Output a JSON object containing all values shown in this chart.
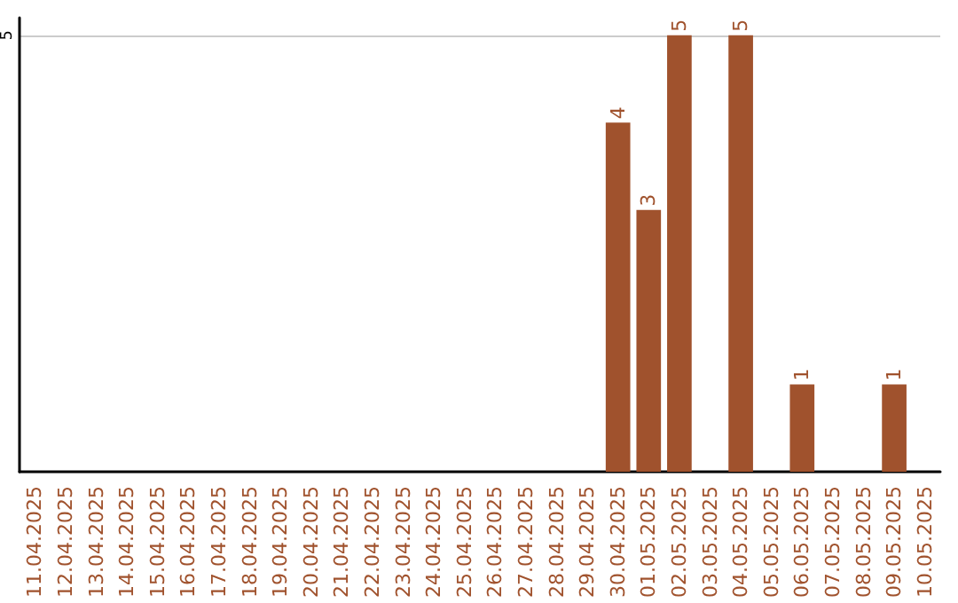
{
  "chart_data": {
    "type": "bar",
    "categories": [
      "11.04.2025",
      "12.04.2025",
      "13.04.2025",
      "14.04.2025",
      "15.04.2025",
      "16.04.2025",
      "17.04.2025",
      "18.04.2025",
      "19.04.2025",
      "20.04.2025",
      "21.04.2025",
      "22.04.2025",
      "23.04.2025",
      "24.04.2025",
      "25.04.2025",
      "26.04.2025",
      "27.04.2025",
      "28.04.2025",
      "29.04.2025",
      "30.04.2025",
      "01.05.2025",
      "02.05.2025",
      "03.05.2025",
      "04.05.2025",
      "05.05.2025",
      "06.05.2025",
      "07.05.2025",
      "08.05.2025",
      "09.05.2025",
      "10.05.2025"
    ],
    "values": [
      null,
      null,
      null,
      null,
      null,
      null,
      null,
      null,
      null,
      null,
      null,
      null,
      null,
      null,
      null,
      null,
      null,
      null,
      null,
      4,
      3,
      5,
      null,
      5,
      null,
      1,
      null,
      null,
      1,
      null
    ],
    "color": "#a0522d",
    "ylim": [
      0,
      5.2
    ],
    "yticks": [
      5
    ],
    "grid": "y",
    "data_labels": true
  }
}
